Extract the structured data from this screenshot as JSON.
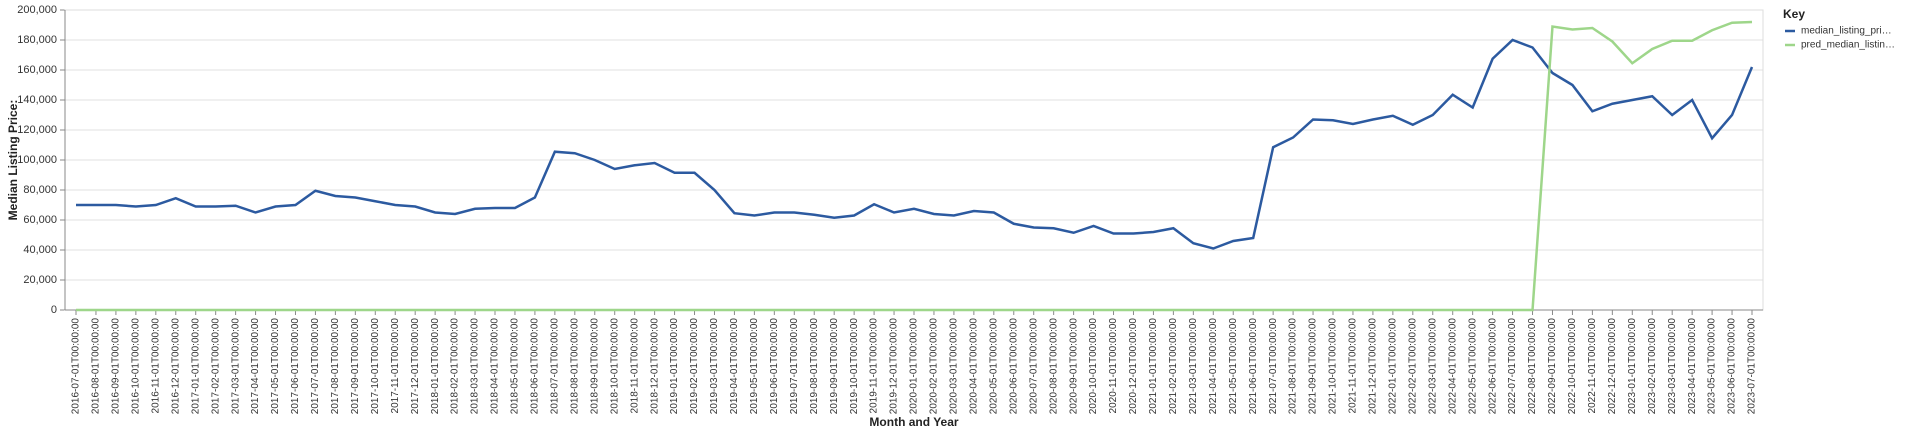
{
  "chart_data": {
    "type": "line",
    "x_label": "Month and Year",
    "y_label": "Median Listing Price:",
    "legend_title": "Key",
    "legend_position": "right",
    "grid": true,
    "categories": [
      "2016-07-01T00:00:00",
      "2016-08-01T00:00:00",
      "2016-09-01T00:00:00",
      "2016-10-01T00:00:00",
      "2016-11-01T00:00:00",
      "2016-12-01T00:00:00",
      "2017-01-01T00:00:00",
      "2017-02-01T00:00:00",
      "2017-03-01T00:00:00",
      "2017-04-01T00:00:00",
      "2017-05-01T00:00:00",
      "2017-06-01T00:00:00",
      "2017-07-01T00:00:00",
      "2017-08-01T00:00:00",
      "2017-09-01T00:00:00",
      "2017-10-01T00:00:00",
      "2017-11-01T00:00:00",
      "2017-12-01T00:00:00",
      "2018-01-01T00:00:00",
      "2018-02-01T00:00:00",
      "2018-03-01T00:00:00",
      "2018-04-01T00:00:00",
      "2018-05-01T00:00:00",
      "2018-06-01T00:00:00",
      "2018-07-01T00:00:00",
      "2018-08-01T00:00:00",
      "2018-09-01T00:00:00",
      "2018-10-01T00:00:00",
      "2018-11-01T00:00:00",
      "2018-12-01T00:00:00",
      "2019-01-01T00:00:00",
      "2019-02-01T00:00:00",
      "2019-03-01T00:00:00",
      "2019-04-01T00:00:00",
      "2019-05-01T00:00:00",
      "2019-06-01T00:00:00",
      "2019-07-01T00:00:00",
      "2019-08-01T00:00:00",
      "2019-09-01T00:00:00",
      "2019-10-01T00:00:00",
      "2019-11-01T00:00:00",
      "2019-12-01T00:00:00",
      "2020-01-01T00:00:00",
      "2020-02-01T00:00:00",
      "2020-03-01T00:00:00",
      "2020-04-01T00:00:00",
      "2020-05-01T00:00:00",
      "2020-06-01T00:00:00",
      "2020-07-01T00:00:00",
      "2020-08-01T00:00:00",
      "2020-09-01T00:00:00",
      "2020-10-01T00:00:00",
      "2020-11-01T00:00:00",
      "2020-12-01T00:00:00",
      "2021-01-01T00:00:00",
      "2021-02-01T00:00:00",
      "2021-03-01T00:00:00",
      "2021-04-01T00:00:00",
      "2021-05-01T00:00:00",
      "2021-06-01T00:00:00",
      "2021-07-01T00:00:00",
      "2021-08-01T00:00:00",
      "2021-09-01T00:00:00",
      "2021-10-01T00:00:00",
      "2021-11-01T00:00:00",
      "2021-12-01T00:00:00",
      "2022-01-01T00:00:00",
      "2022-02-01T00:00:00",
      "2022-03-01T00:00:00",
      "2022-04-01T00:00:00",
      "2022-05-01T00:00:00",
      "2022-06-01T00:00:00",
      "2022-07-01T00:00:00",
      "2022-08-01T00:00:00",
      "2022-09-01T00:00:00",
      "2022-10-01T00:00:00",
      "2022-11-01T00:00:00",
      "2022-12-01T00:00:00",
      "2023-01-01T00:00:00",
      "2023-02-01T00:00:00",
      "2023-03-01T00:00:00",
      "2023-04-01T00:00:00",
      "2023-05-01T00:00:00",
      "2023-06-01T00:00:00",
      "2023-07-01T00:00:00"
    ],
    "series": [
      {
        "name": "median_listing_pri…",
        "color": "#2c5aa0",
        "values": [
          70000,
          70000,
          70000,
          69000,
          70000,
          74500,
          69000,
          69000,
          69500,
          65000,
          69000,
          70000,
          79500,
          76000,
          75000,
          72500,
          70000,
          69000,
          65000,
          64000,
          67500,
          68000,
          68000,
          75000,
          105500,
          104500,
          100000,
          94000,
          96500,
          98000,
          91500,
          91500,
          80000,
          64500,
          63000,
          65000,
          65000,
          63500,
          61500,
          63000,
          70500,
          65000,
          67500,
          64000,
          63000,
          66000,
          65000,
          57500,
          55000,
          54500,
          51500,
          56000,
          51000,
          51000,
          52000,
          54500,
          44500,
          41000,
          46000,
          48000,
          108500,
          115000,
          127000,
          126500,
          124000,
          127000,
          129500,
          123500,
          130000,
          143500,
          135000,
          167500,
          180000,
          175000,
          158000,
          150000,
          132500,
          137500,
          140000,
          142500,
          130000,
          140000,
          114500,
          130000,
          162000
        ]
      },
      {
        "name": "pred_median_listin…",
        "color": "#9ed68a",
        "values": [
          0,
          0,
          0,
          0,
          0,
          0,
          0,
          0,
          0,
          0,
          0,
          0,
          0,
          0,
          0,
          0,
          0,
          0,
          0,
          0,
          0,
          0,
          0,
          0,
          0,
          0,
          0,
          0,
          0,
          0,
          0,
          0,
          0,
          0,
          0,
          0,
          0,
          0,
          0,
          0,
          0,
          0,
          0,
          0,
          0,
          0,
          0,
          0,
          0,
          0,
          0,
          0,
          0,
          0,
          0,
          0,
          0,
          0,
          0,
          0,
          0,
          0,
          0,
          0,
          0,
          0,
          0,
          0,
          0,
          0,
          0,
          0,
          0,
          0,
          189000,
          187000,
          188000,
          179000,
          164500,
          174000,
          179500,
          179500,
          186500,
          191500,
          192000
        ]
      }
    ],
    "ylim": [
      0,
      200000
    ],
    "yticks": [
      0,
      {
        "value": 20000,
        "label": "20,000"
      },
      {
        "value": 40000,
        "label": "40,000"
      },
      {
        "value": 60000,
        "label": "60,000"
      },
      {
        "value": 80000,
        "label": "80,000"
      },
      {
        "value": 100000,
        "label": "100,000"
      },
      {
        "value": 120000,
        "label": "120,000"
      },
      {
        "value": 140000,
        "label": "140,000"
      },
      {
        "value": 160000,
        "label": "160,000"
      },
      {
        "value": 180000,
        "label": "180,000"
      },
      {
        "value": 200000,
        "label": "200,000"
      }
    ]
  }
}
